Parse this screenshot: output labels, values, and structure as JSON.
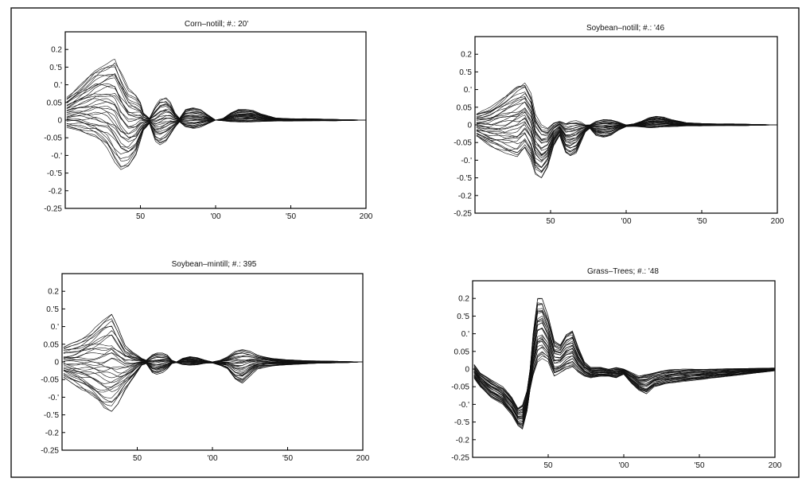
{
  "colors": {
    "trace": "#101010",
    "frame": "#000000",
    "background": "#ffffff"
  },
  "chart_data": [
    {
      "type": "line",
      "title": "Corn–notill; #.: 20'",
      "xlim": [
        0,
        200
      ],
      "ylim": [
        -0.25,
        0.25
      ],
      "xticks": [
        "50",
        "'00",
        "'50",
        "200"
      ],
      "yticks": [
        "0.2",
        "0.'5",
        "0.'",
        "0.05",
        "0",
        "-0.05",
        "-0.'",
        "-0.'5",
        "-0.2",
        "-0.25"
      ],
      "envelope": {
        "x": [
          0,
          10,
          20,
          28,
          33,
          37,
          42,
          47,
          50,
          52,
          56,
          60,
          63,
          67,
          70,
          73,
          76,
          80,
          85,
          90,
          95,
          100,
          105,
          110,
          115,
          120,
          125,
          130,
          140,
          150,
          160,
          170,
          180,
          190,
          200
        ],
        "upper": [
          0.06,
          0.1,
          0.14,
          0.16,
          0.175,
          0.14,
          0.09,
          0.07,
          0.05,
          0.02,
          0.005,
          0.04,
          0.06,
          0.065,
          0.05,
          0.02,
          0.005,
          0.03,
          0.035,
          0.03,
          0.015,
          0.0,
          0.005,
          0.02,
          0.03,
          0.03,
          0.028,
          0.018,
          0.006,
          0.004,
          0.004,
          0.003,
          0.002,
          0.001,
          0.0
        ],
        "lower": [
          -0.02,
          -0.03,
          -0.05,
          -0.08,
          -0.12,
          -0.14,
          -0.13,
          -0.1,
          -0.06,
          -0.03,
          -0.01,
          -0.06,
          -0.07,
          -0.06,
          -0.04,
          -0.02,
          -0.005,
          -0.02,
          -0.025,
          -0.02,
          -0.01,
          0.0,
          -0.002,
          -0.005,
          -0.006,
          -0.006,
          -0.005,
          -0.004,
          -0.003,
          -0.003,
          -0.002,
          -0.002,
          -0.002,
          -0.001,
          0.0
        ]
      }
    },
    {
      "type": "line",
      "title": "Soybean–notill; #.: '46",
      "xlim": [
        0,
        200
      ],
      "ylim": [
        -0.25,
        0.25
      ],
      "xticks": [
        "50",
        "'00",
        "'50",
        "200"
      ],
      "yticks": [
        "0.2",
        "0.'5",
        "0.'",
        "0.05",
        "0",
        "-0.05",
        "-0.'",
        "-0.'5",
        "-0.2",
        "-0.25"
      ],
      "envelope": {
        "x": [
          0,
          10,
          20,
          28,
          33,
          37,
          40,
          44,
          48,
          52,
          56,
          60,
          63,
          67,
          70,
          73,
          76,
          80,
          85,
          90,
          95,
          100,
          105,
          110,
          115,
          120,
          125,
          130,
          140,
          150,
          160,
          170,
          180,
          190,
          200
        ],
        "upper": [
          0.03,
          0.05,
          0.08,
          0.11,
          0.12,
          0.09,
          0.03,
          0.0,
          -0.01,
          0.005,
          0.01,
          0.005,
          0.01,
          0.012,
          0.008,
          0.0,
          0.0,
          0.01,
          0.015,
          0.015,
          0.008,
          0.0,
          0.003,
          0.01,
          0.02,
          0.025,
          0.022,
          0.015,
          0.006,
          0.004,
          0.003,
          0.003,
          0.002,
          0.001,
          0.0
        ],
        "lower": [
          -0.03,
          -0.06,
          -0.08,
          -0.09,
          -0.07,
          -0.1,
          -0.14,
          -0.15,
          -0.12,
          -0.06,
          -0.03,
          -0.08,
          -0.09,
          -0.08,
          -0.05,
          -0.02,
          -0.01,
          -0.03,
          -0.035,
          -0.03,
          -0.015,
          -0.005,
          -0.004,
          -0.006,
          -0.008,
          -0.008,
          -0.006,
          -0.005,
          -0.003,
          -0.003,
          -0.002,
          -0.002,
          -0.002,
          -0.001,
          0.0
        ]
      }
    },
    {
      "type": "line",
      "title": "Soybean–mintill; #.: 395",
      "xlim": [
        0,
        200
      ],
      "ylim": [
        -0.25,
        0.25
      ],
      "xticks": [
        "50",
        "'00",
        "'50",
        "200"
      ],
      "yticks": [
        "0.2",
        "0.'5",
        "0.'",
        "0.05",
        "0",
        "-0.05",
        "-0.'",
        "-0.'5",
        "-0.2",
        "-0.25"
      ],
      "envelope": {
        "x": [
          0,
          10,
          20,
          28,
          33,
          37,
          42,
          47,
          50,
          53,
          56,
          60,
          63,
          67,
          70,
          73,
          76,
          80,
          85,
          90,
          95,
          100,
          105,
          110,
          115,
          120,
          125,
          130,
          140,
          150,
          160,
          170,
          180,
          190,
          200
        ],
        "upper": [
          0.04,
          0.06,
          0.09,
          0.12,
          0.135,
          0.1,
          0.05,
          0.03,
          0.02,
          0.01,
          0.005,
          0.02,
          0.025,
          0.025,
          0.02,
          0.005,
          0.0,
          0.01,
          0.015,
          0.012,
          0.005,
          0.0,
          0.005,
          0.015,
          0.03,
          0.035,
          0.03,
          0.02,
          0.01,
          0.006,
          0.004,
          0.003,
          0.002,
          0.001,
          0.0
        ],
        "lower": [
          -0.04,
          -0.07,
          -0.1,
          -0.13,
          -0.14,
          -0.12,
          -0.08,
          -0.05,
          -0.03,
          -0.01,
          -0.005,
          -0.03,
          -0.035,
          -0.03,
          -0.02,
          -0.005,
          -0.002,
          -0.008,
          -0.01,
          -0.008,
          -0.004,
          -0.003,
          -0.01,
          -0.02,
          -0.05,
          -0.06,
          -0.04,
          -0.02,
          -0.012,
          -0.008,
          -0.006,
          -0.004,
          -0.003,
          -0.002,
          0.0
        ]
      }
    },
    {
      "type": "line",
      "title": "Grass–Trees; #.: '48",
      "xlim": [
        0,
        200
      ],
      "ylim": [
        -0.25,
        0.25
      ],
      "xticks": [
        "50",
        "'00",
        "'50",
        "200"
      ],
      "yticks": [
        "0.2",
        "0.'5",
        "0.'",
        "0.05",
        "0",
        "-0.05",
        "-0.'",
        "-0.'5",
        "-0.2",
        "-0.25"
      ],
      "envelope": {
        "x": [
          0,
          5,
          12,
          20,
          26,
          30,
          33,
          36,
          38,
          40,
          43,
          46,
          50,
          54,
          58,
          62,
          66,
          70,
          74,
          78,
          85,
          90,
          95,
          100,
          105,
          110,
          115,
          120,
          125,
          130,
          140,
          150,
          160,
          180,
          200
        ],
        "upper": [
          0.02,
          -0.01,
          -0.03,
          -0.05,
          -0.08,
          -0.11,
          -0.1,
          -0.06,
          0.0,
          0.1,
          0.2,
          0.2,
          0.15,
          0.08,
          0.07,
          0.1,
          0.11,
          0.06,
          0.02,
          0.005,
          0.005,
          0.0,
          0.005,
          0.0,
          -0.01,
          -0.02,
          -0.015,
          -0.01,
          -0.005,
          -0.002,
          0.0,
          0.0,
          0.0,
          0.002,
          0.003
        ],
        "lower": [
          -0.02,
          -0.05,
          -0.08,
          -0.1,
          -0.13,
          -0.16,
          -0.17,
          -0.12,
          -0.06,
          -0.02,
          0.02,
          0.03,
          0.02,
          -0.02,
          -0.01,
          0.0,
          0.005,
          -0.01,
          -0.02,
          -0.025,
          -0.02,
          -0.02,
          -0.025,
          -0.015,
          -0.04,
          -0.06,
          -0.07,
          -0.05,
          -0.045,
          -0.04,
          -0.035,
          -0.03,
          -0.025,
          -0.015,
          -0.005
        ]
      }
    }
  ]
}
